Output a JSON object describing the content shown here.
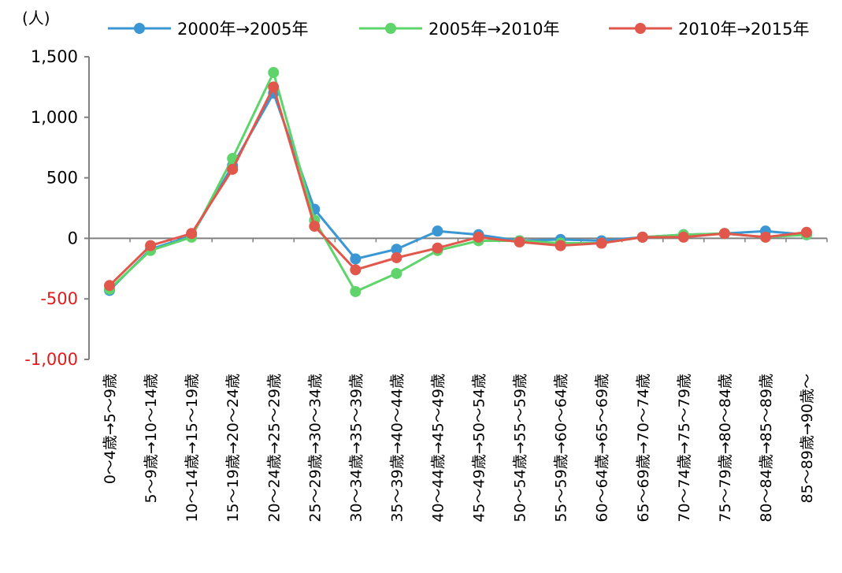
{
  "chart_data": {
    "type": "line",
    "unit_label": "(人)",
    "categories": [
      "0～4歳→5～9歳",
      "5～9歳→10～14歳",
      "10～14歳→15～19歳",
      "15～19歳→20～24歳",
      "20～24歳→25～29歳",
      "25～29歳→30～34歳",
      "30～34歳→35～39歳",
      "35～39歳→40～44歳",
      "40～44歳→45～49歳",
      "45～49歳→50～54歳",
      "50～54歳→55～59歳",
      "55～59歳→60～64歳",
      "60～64歳→65～69歳",
      "65～69歳→70～74歳",
      "70～74歳→75～79歳",
      "75～79歳→80～84歳",
      "80～84歳→85～89歳",
      "85～89歳→90歳～"
    ],
    "series": [
      {
        "name": "2000年→2005年",
        "color": "#3a97d3",
        "values": [
          -430,
          -90,
          20,
          600,
          1200,
          240,
          -170,
          -90,
          60,
          30,
          -20,
          -10,
          -20,
          10,
          30,
          40,
          60,
          30
        ]
      },
      {
        "name": "2005年→2010年",
        "color": "#5ed46a",
        "values": [
          -420,
          -100,
          10,
          660,
          1370,
          150,
          -440,
          -290,
          -100,
          -20,
          -20,
          -40,
          -40,
          10,
          30,
          40,
          10,
          30
        ]
      },
      {
        "name": "2010年→2015年",
        "color": "#e2574c",
        "values": [
          -390,
          -60,
          40,
          570,
          1250,
          100,
          -260,
          -160,
          -80,
          10,
          -30,
          -60,
          -40,
          10,
          10,
          40,
          10,
          50
        ]
      }
    ],
    "y_ticks": [
      {
        "value": 1500,
        "label": "1,500",
        "color": "#000000"
      },
      {
        "value": 1000,
        "label": "1,000",
        "color": "#000000"
      },
      {
        "value": 500,
        "label": "500",
        "color": "#000000"
      },
      {
        "value": 0,
        "label": "0",
        "color": "#000000"
      },
      {
        "value": -500,
        "label": "-500",
        "color": "#e31a1c"
      },
      {
        "value": -1000,
        "label": "-1,000",
        "color": "#e31a1c"
      }
    ],
    "ylim": [
      -1000,
      1500
    ],
    "grid": false,
    "legend_position": "top"
  }
}
